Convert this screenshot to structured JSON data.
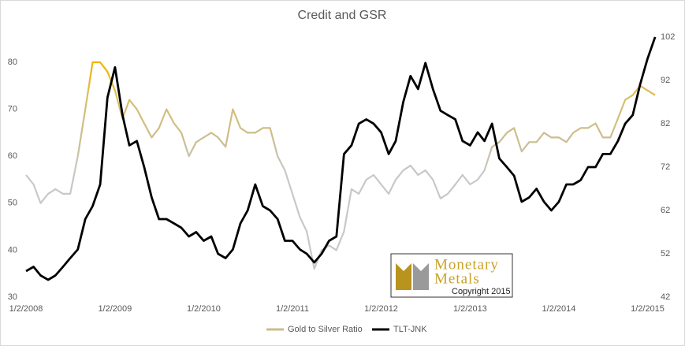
{
  "chart_data": {
    "type": "line",
    "title": "Credit and GSR",
    "x": [
      "2008-01-02",
      "2008-02-02",
      "2008-03-02",
      "2008-04-02",
      "2008-05-02",
      "2008-06-02",
      "2008-07-02",
      "2008-08-02",
      "2008-09-02",
      "2008-10-02",
      "2008-11-02",
      "2008-12-02",
      "2009-01-02",
      "2009-02-02",
      "2009-03-02",
      "2009-04-02",
      "2009-05-02",
      "2009-06-02",
      "2009-07-02",
      "2009-08-02",
      "2009-09-02",
      "2009-10-02",
      "2009-11-02",
      "2009-12-02",
      "2010-01-02",
      "2010-02-02",
      "2010-03-02",
      "2010-04-02",
      "2010-05-02",
      "2010-06-02",
      "2010-07-02",
      "2010-08-02",
      "2010-09-02",
      "2010-10-02",
      "2010-11-02",
      "2010-12-02",
      "2011-01-02",
      "2011-02-02",
      "2011-03-02",
      "2011-04-02",
      "2011-05-02",
      "2011-06-02",
      "2011-07-02",
      "2011-08-02",
      "2011-09-02",
      "2011-10-02",
      "2011-11-02",
      "2011-12-02",
      "2012-01-02",
      "2012-02-02",
      "2012-03-02",
      "2012-04-02",
      "2012-05-02",
      "2012-06-02",
      "2012-07-02",
      "2012-08-02",
      "2012-09-02",
      "2012-10-02",
      "2012-11-02",
      "2012-12-02",
      "2013-01-02",
      "2013-02-02",
      "2013-03-02",
      "2013-04-02",
      "2013-05-02",
      "2013-06-02",
      "2013-07-02",
      "2013-08-02",
      "2013-09-02",
      "2013-10-02",
      "2013-11-02",
      "2013-12-02",
      "2014-01-02",
      "2014-02-02",
      "2014-03-02",
      "2014-04-02",
      "2014-05-02",
      "2014-06-02",
      "2014-07-02",
      "2014-08-02",
      "2014-09-02",
      "2014-10-02",
      "2014-11-02",
      "2014-12-02",
      "2015-01-02",
      "2015-02-02"
    ],
    "series": [
      {
        "name": "Gold to Silver Ratio",
        "color": "#c9bd8e",
        "axis": "y",
        "values": [
          56,
          54,
          50,
          52,
          53,
          52,
          52,
          60,
          70,
          80,
          80,
          78,
          74,
          68,
          72,
          70,
          67,
          64,
          66,
          70,
          67,
          65,
          60,
          63,
          64,
          65,
          64,
          62,
          70,
          66,
          65,
          65,
          66,
          66,
          60,
          57,
          52,
          47,
          44,
          36,
          40,
          41,
          40,
          44,
          53,
          52,
          55,
          56,
          54,
          52,
          55,
          57,
          58,
          56,
          57,
          55,
          51,
          52,
          54,
          56,
          54,
          55,
          57,
          62,
          63,
          65,
          66,
          61,
          63,
          63,
          65,
          64,
          64,
          63,
          65,
          66,
          66,
          67,
          64,
          64,
          68,
          72,
          73,
          75,
          74,
          73
        ]
      },
      {
        "name": "TLT-JNK",
        "color": "#000000",
        "axis": "y2",
        "values": [
          48,
          49,
          47,
          46,
          47,
          49,
          51,
          53,
          60,
          63,
          68,
          88,
          95,
          84,
          77,
          78,
          72,
          65,
          60,
          60,
          59,
          58,
          56,
          57,
          55,
          56,
          52,
          51,
          53,
          59,
          62,
          68,
          63,
          62,
          60,
          55,
          55,
          53,
          52,
          50,
          52,
          55,
          56,
          75,
          77,
          82,
          83,
          82,
          80,
          75,
          78,
          87,
          93,
          90,
          96,
          90,
          85,
          84,
          83,
          78,
          77,
          80,
          78,
          82,
          74,
          72,
          70,
          64,
          65,
          67,
          64,
          62,
          64,
          68,
          68,
          69,
          72,
          72,
          75,
          75,
          78,
          82,
          84,
          91,
          97,
          102
        ]
      }
    ],
    "xlim": [
      "2008-01-02",
      "2015-02-05"
    ],
    "xticks": [
      {
        "value": "2008-01-02",
        "label": "1/2/2008"
      },
      {
        "value": "2009-01-02",
        "label": "1/2/2009"
      },
      {
        "value": "2010-01-02",
        "label": "1/2/2010"
      },
      {
        "value": "2011-01-02",
        "label": "1/2/2011"
      },
      {
        "value": "2012-01-02",
        "label": "1/2/2012"
      },
      {
        "value": "2013-01-02",
        "label": "1/2/2013"
      },
      {
        "value": "2014-01-02",
        "label": "1/2/2014"
      },
      {
        "value": "2015-01-02",
        "label": "1/2/2015"
      }
    ],
    "ylim": [
      30,
      90
    ],
    "yticks": [
      30,
      40,
      50,
      60,
      70,
      80
    ],
    "y2lim": [
      42,
      107
    ],
    "y2ticks": [
      42,
      52,
      62,
      72,
      82,
      92,
      102
    ],
    "legend": "bottom"
  },
  "logo": {
    "line1": "Monetary",
    "line2": "Metals",
    "copyright": "Copyright 2015"
  }
}
